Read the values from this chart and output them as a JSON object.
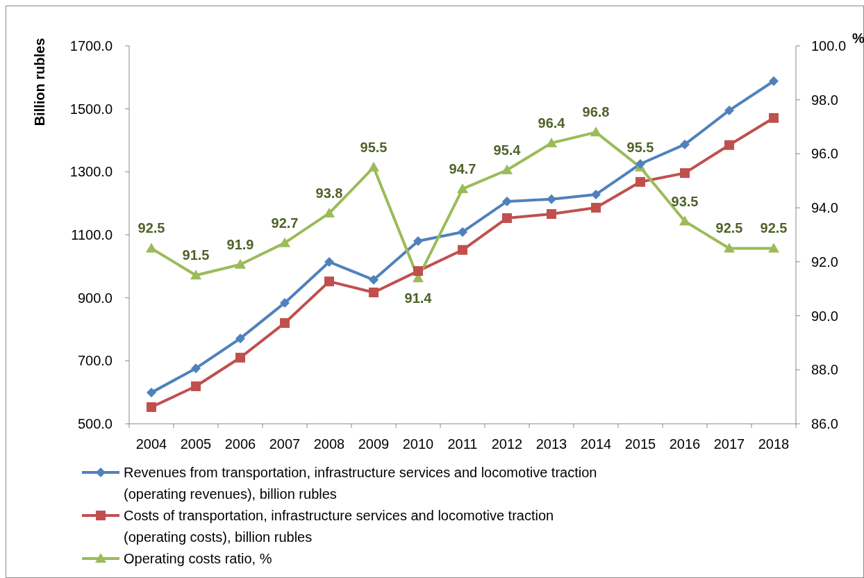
{
  "chart_data": {
    "type": "line",
    "ylabel": "Billion rubles",
    "y2label": "%",
    "categories": [
      "2004",
      "2005",
      "2006",
      "2007",
      "2008",
      "2009",
      "2010",
      "2011",
      "2012",
      "2013",
      "2014",
      "2015",
      "2016",
      "2017",
      "2018"
    ],
    "ylim": [
      500,
      1700
    ],
    "yticks": [
      {
        "value": 500,
        "label": "500.0"
      },
      {
        "value": 700,
        "label": "700.0"
      },
      {
        "value": 900,
        "label": "900.0"
      },
      {
        "value": 1100,
        "label": "1100.0"
      },
      {
        "value": 1300,
        "label": "1300.0"
      },
      {
        "value": 1500,
        "label": "1500.0"
      },
      {
        "value": 1700,
        "label": "1700.0"
      }
    ],
    "y2lim": [
      86,
      100
    ],
    "y2ticks": [
      {
        "value": 86,
        "label": "86.0"
      },
      {
        "value": 88,
        "label": "88.0"
      },
      {
        "value": 90,
        "label": "90.0"
      },
      {
        "value": 92,
        "label": "92.0"
      },
      {
        "value": 94,
        "label": "94.0"
      },
      {
        "value": 96,
        "label": "96.0"
      },
      {
        "value": 98,
        "label": "98.0"
      },
      {
        "value": 100,
        "label": "100.0"
      }
    ],
    "grid": false,
    "legend": "bottom",
    "series": [
      {
        "name": "Revenues from transportation, infrastructure services and locomotive traction (operating revenues), billion rubles",
        "color": "#4f81bd",
        "marker": "diamond",
        "values": [
          599,
          676,
          771,
          884,
          1014,
          957,
          1080,
          1109,
          1206,
          1213,
          1228,
          1325,
          1387,
          1495,
          1588
        ]
      },
      {
        "name": "Costs of transportation, infrastructure services and locomotive traction (operating costs), billion rubles",
        "color": "#c0504d",
        "marker": "square",
        "values": [
          553,
          619,
          710,
          820,
          952,
          917,
          985,
          1052,
          1153,
          1166,
          1186,
          1268,
          1296,
          1385,
          1471
        ]
      },
      {
        "name": "Operating costs ratio, %",
        "color": "#9bbb59",
        "marker": "triangle",
        "axis": "y2",
        "values": [
          92.5,
          91.5,
          91.9,
          92.7,
          93.8,
          95.5,
          91.4,
          94.7,
          95.4,
          96.4,
          96.8,
          95.5,
          93.5,
          92.5,
          92.5
        ],
        "value_labels": [
          "92.5",
          "91.5",
          "91.9",
          "92.7",
          "93.8",
          "95.5",
          "91.4",
          "94.7",
          "95.4",
          "96.4",
          "96.8",
          "95.5",
          "93.5",
          "92.5",
          "92.5"
        ]
      }
    ]
  }
}
